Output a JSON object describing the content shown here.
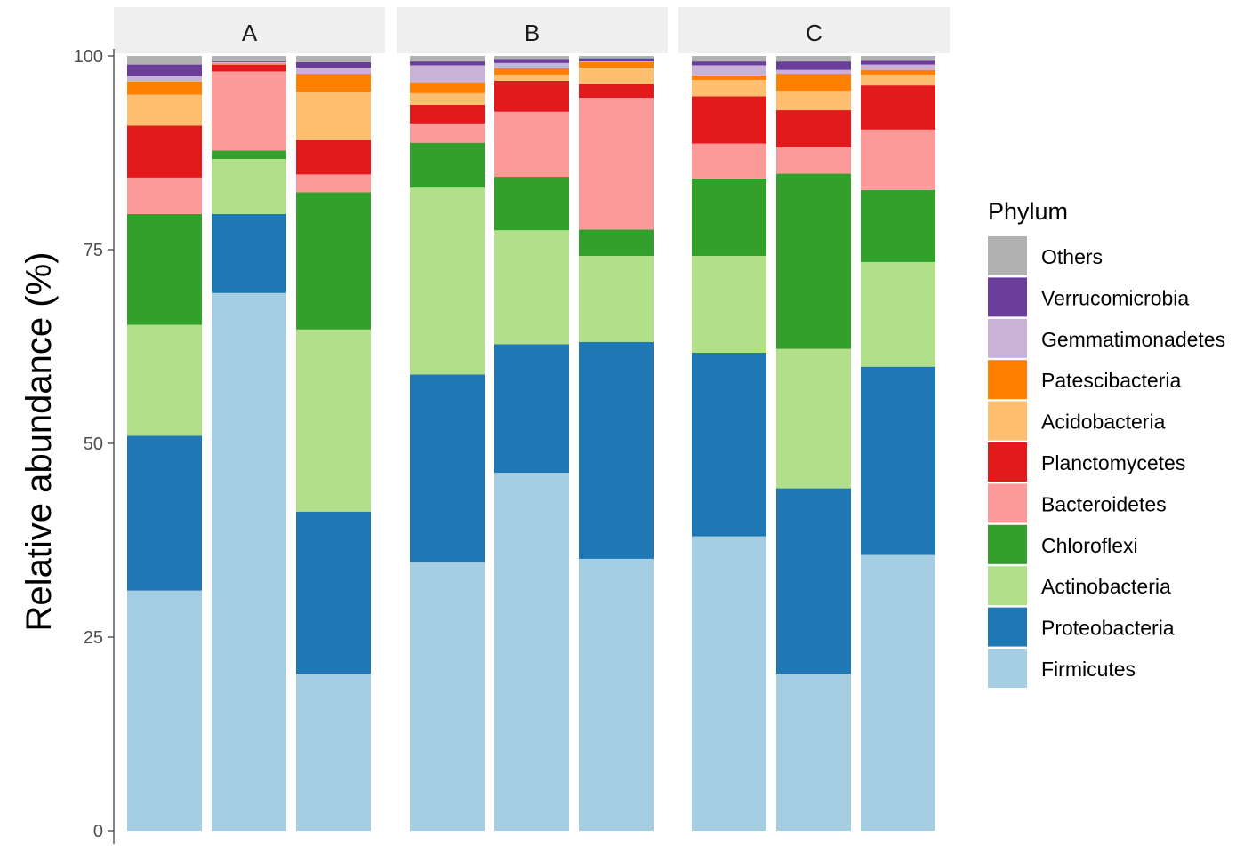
{
  "chart_data": {
    "type": "bar",
    "stacked": true,
    "facets": [
      "A",
      "B",
      "C"
    ],
    "ylabel": "Relative abundance (%)",
    "xlabel": "",
    "ylim": [
      0,
      100
    ],
    "yticks": [
      0,
      25,
      50,
      75,
      100
    ],
    "grid": false,
    "legend": {
      "title": "Phylum",
      "placement": "right"
    },
    "phyla": [
      "Others",
      "Verrucomicrobia",
      "Gemmatimonadetes",
      "Patescibacteria",
      "Acidobacteria",
      "Planctomycetes",
      "Bacteroidetes",
      "Chloroflexi",
      "Actinobacteria",
      "Proteobacteria",
      "Firmicutes"
    ],
    "colors": {
      "Others": "#b1b1b1",
      "Verrucomicrobia": "#6a3d9a",
      "Gemmatimonadetes": "#cab2d6",
      "Patescibacteria": "#ff7f00",
      "Acidobacteria": "#fdbf6f",
      "Planctomycetes": "#e31a1c",
      "Bacteroidetes": "#fb9a99",
      "Chloroflexi": "#33a02c",
      "Actinobacteria": "#b2df8a",
      "Proteobacteria": "#1f78b4",
      "Firmicutes": "#a6cee3"
    },
    "stack_order_bottom_to_top": [
      "Firmicutes",
      "Proteobacteria",
      "Actinobacteria",
      "Chloroflexi",
      "Bacteroidetes",
      "Planctomycetes",
      "Acidobacteria",
      "Patescibacteria",
      "Gemmatimonadetes",
      "Verrucomicrobia",
      "Others"
    ],
    "samples": [
      {
        "facet": "A",
        "values": {
          "Firmicutes": 31.0,
          "Proteobacteria": 20.0,
          "Actinobacteria": 14.3,
          "Chloroflexi": 14.3,
          "Bacteroidetes": 4.7,
          "Planctomycetes": 6.7,
          "Acidobacteria": 4.0,
          "Patescibacteria": 1.7,
          "Gemmatimonadetes": 0.7,
          "Verrucomicrobia": 1.5,
          "Others": 1.1
        }
      },
      {
        "facet": "A",
        "values": {
          "Firmicutes": 69.4,
          "Proteobacteria": 10.2,
          "Actinobacteria": 7.1,
          "Chloroflexi": 1.1,
          "Bacteroidetes": 10.2,
          "Planctomycetes": 0.9,
          "Acidobacteria": 0.1,
          "Patescibacteria": 0.1,
          "Gemmatimonadetes": 0.1,
          "Verrucomicrobia": 0.1,
          "Others": 0.7
        }
      },
      {
        "facet": "A",
        "values": {
          "Firmicutes": 20.3,
          "Proteobacteria": 20.9,
          "Actinobacteria": 23.5,
          "Chloroflexi": 17.7,
          "Bacteroidetes": 2.3,
          "Planctomycetes": 4.5,
          "Acidobacteria": 6.2,
          "Patescibacteria": 2.3,
          "Gemmatimonadetes": 0.8,
          "Verrucomicrobia": 0.7,
          "Others": 0.8
        }
      },
      {
        "facet": "B",
        "values": {
          "Firmicutes": 34.7,
          "Proteobacteria": 24.2,
          "Actinobacteria": 24.1,
          "Chloroflexi": 5.8,
          "Bacteroidetes": 2.5,
          "Planctomycetes": 2.4,
          "Acidobacteria": 1.5,
          "Patescibacteria": 1.4,
          "Gemmatimonadetes": 2.2,
          "Verrucomicrobia": 0.5,
          "Others": 0.7
        }
      },
      {
        "facet": "B",
        "values": {
          "Firmicutes": 46.2,
          "Proteobacteria": 16.6,
          "Actinobacteria": 14.7,
          "Chloroflexi": 6.9,
          "Bacteroidetes": 8.4,
          "Planctomycetes": 4.0,
          "Acidobacteria": 0.8,
          "Patescibacteria": 0.8,
          "Gemmatimonadetes": 0.7,
          "Verrucomicrobia": 0.5,
          "Others": 0.4
        }
      },
      {
        "facet": "B",
        "values": {
          "Firmicutes": 35.1,
          "Proteobacteria": 28.0,
          "Actinobacteria": 11.1,
          "Chloroflexi": 3.4,
          "Bacteroidetes": 17.0,
          "Planctomycetes": 1.8,
          "Acidobacteria": 2.1,
          "Patescibacteria": 0.7,
          "Gemmatimonadetes": 0.1,
          "Verrucomicrobia": 0.4,
          "Others": 0.3
        }
      },
      {
        "facet": "C",
        "values": {
          "Firmicutes": 38.0,
          "Proteobacteria": 23.7,
          "Actinobacteria": 12.5,
          "Chloroflexi": 10.0,
          "Bacteroidetes": 4.5,
          "Planctomycetes": 6.1,
          "Acidobacteria": 2.1,
          "Patescibacteria": 0.6,
          "Gemmatimonadetes": 1.3,
          "Verrucomicrobia": 0.5,
          "Others": 0.7
        }
      },
      {
        "facet": "C",
        "values": {
          "Firmicutes": 20.3,
          "Proteobacteria": 23.9,
          "Actinobacteria": 18.0,
          "Chloroflexi": 22.6,
          "Bacteroidetes": 3.4,
          "Planctomycetes": 4.8,
          "Acidobacteria": 2.5,
          "Patescibacteria": 2.2,
          "Gemmatimonadetes": 0.5,
          "Verrucomicrobia": 1.1,
          "Others": 0.7
        }
      },
      {
        "facet": "C",
        "values": {
          "Firmicutes": 35.6,
          "Proteobacteria": 24.3,
          "Actinobacteria": 13.5,
          "Chloroflexi": 9.3,
          "Bacteroidetes": 7.8,
          "Planctomycetes": 5.7,
          "Acidobacteria": 1.4,
          "Patescibacteria": 0.6,
          "Gemmatimonadetes": 0.7,
          "Verrucomicrobia": 0.5,
          "Others": 0.6
        }
      }
    ]
  }
}
